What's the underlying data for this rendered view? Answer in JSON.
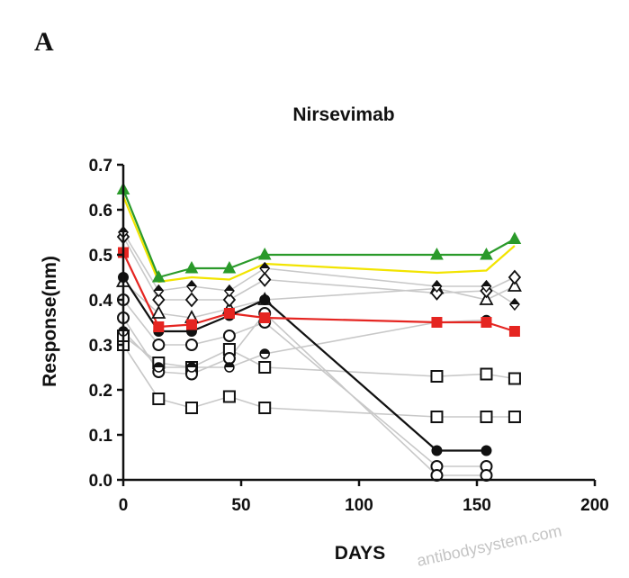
{
  "panel_label": "A",
  "watermark": "antibodysystem.com",
  "chart_data": {
    "type": "line",
    "title": "Nirsevimab",
    "xlabel": "DAYS",
    "ylabel": "Response(nm)",
    "xlim": [
      0,
      200
    ],
    "ylim": [
      0,
      0.7
    ],
    "xticks": [
      0,
      50,
      100,
      150,
      200
    ],
    "yticks": [
      0.0,
      0.1,
      0.2,
      0.3,
      0.4,
      0.5,
      0.6,
      0.7
    ],
    "xtick_labels": [
      "0",
      "50",
      "100",
      "150",
      "200"
    ],
    "ytick_labels": [
      "0.0",
      "0.1",
      "0.2",
      "0.3",
      "0.4",
      "0.5",
      "0.6",
      "0.7"
    ],
    "grid": false,
    "legend": "none",
    "series": [
      {
        "color": "#c8c8c8",
        "marker": "square-open",
        "line": true,
        "x": [
          0,
          15,
          29,
          45,
          60,
          133,
          154,
          166
        ],
        "y": [
          0.3,
          0.18,
          0.16,
          0.185,
          0.16,
          0.14,
          0.14,
          0.14
        ]
      },
      {
        "color": "#c8c8c8",
        "marker": "square-open",
        "line": true,
        "x": [
          0,
          15,
          29,
          45,
          60,
          133,
          154,
          166
        ],
        "y": [
          0.32,
          0.26,
          0.25,
          0.29,
          0.25,
          0.23,
          0.235,
          0.225
        ]
      },
      {
        "color": "#c8c8c8",
        "marker": "circle-open",
        "line": true,
        "x": [
          0,
          15,
          29,
          45,
          60,
          133,
          154
        ],
        "y": [
          0.4,
          0.3,
          0.3,
          0.32,
          0.35,
          0.03,
          0.03
        ]
      },
      {
        "color": "#c8c8c8",
        "marker": "circle-open",
        "line": true,
        "x": [
          0,
          15,
          29,
          45,
          60,
          133,
          154
        ],
        "y": [
          0.36,
          0.24,
          0.235,
          0.27,
          0.37,
          0.01,
          0.01
        ]
      },
      {
        "color": "#c8c8c8",
        "marker": "half-circle",
        "line": true,
        "x": [
          0,
          15,
          29,
          45,
          60,
          133,
          154
        ],
        "y": [
          0.33,
          0.25,
          0.25,
          0.25,
          0.28,
          0.35,
          0.355
        ]
      },
      {
        "color": "#c8c8c8",
        "marker": "triangle-open",
        "line": true,
        "x": [
          0,
          15,
          29,
          45,
          60,
          133,
          154,
          166
        ],
        "y": [
          0.44,
          0.37,
          0.36,
          0.38,
          0.4,
          0.425,
          0.4,
          0.43
        ]
      },
      {
        "color": "#c8c8c8",
        "marker": "diamond-open",
        "line": true,
        "x": [
          0,
          15,
          29,
          45,
          60,
          133,
          154,
          166
        ],
        "y": [
          0.54,
          0.4,
          0.4,
          0.4,
          0.445,
          0.415,
          0.42,
          0.45
        ]
      },
      {
        "color": "#c8c8c8",
        "marker": "diamond-half",
        "line": true,
        "x": [
          0,
          15,
          29,
          45,
          60,
          133,
          154,
          166
        ],
        "y": [
          0.55,
          0.42,
          0.43,
          0.42,
          0.47,
          0.43,
          0.43,
          0.39
        ]
      },
      {
        "color": "#111111",
        "marker": "circle-filled",
        "line": true,
        "x": [
          0,
          15,
          29,
          45,
          60,
          133,
          154
        ],
        "y": [
          0.45,
          0.33,
          0.33,
          0.365,
          0.4,
          0.065,
          0.065
        ]
      },
      {
        "color": "#e52521",
        "marker": "square-filled",
        "line": true,
        "x": [
          0,
          15,
          29,
          45,
          60,
          133,
          154,
          166
        ],
        "y": [
          0.505,
          0.34,
          0.345,
          0.37,
          0.36,
          0.35,
          0.35,
          0.33
        ]
      },
      {
        "color": "#f2e400",
        "marker": "none",
        "line": true,
        "x": [
          0,
          15,
          29,
          45,
          60,
          133,
          154,
          166
        ],
        "y": [
          0.63,
          0.44,
          0.45,
          0.445,
          0.48,
          0.46,
          0.465,
          0.52
        ]
      },
      {
        "color": "#2a9a2a",
        "marker": "triangle-filled",
        "line": true,
        "x": [
          0,
          15,
          29,
          45,
          60,
          133,
          154,
          166
        ],
        "y": [
          0.645,
          0.45,
          0.47,
          0.47,
          0.5,
          0.5,
          0.5,
          0.535
        ]
      }
    ]
  }
}
